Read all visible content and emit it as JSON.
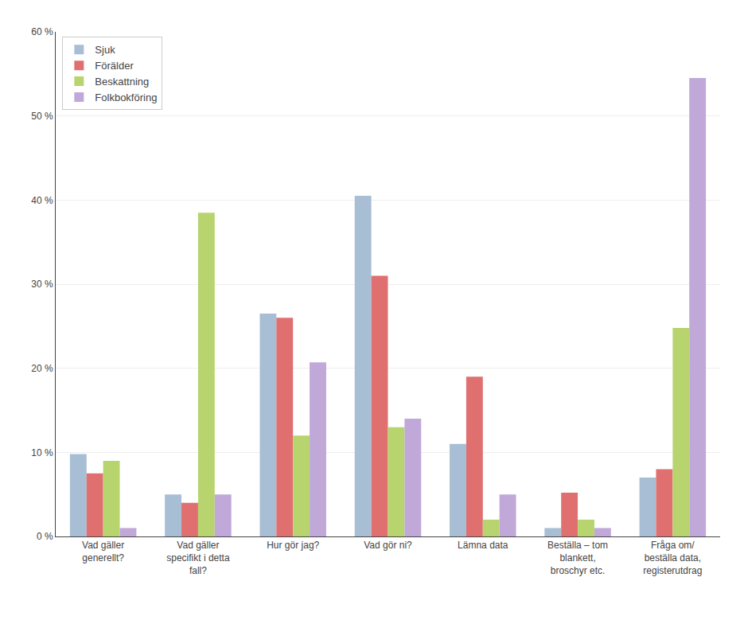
{
  "chart_data": {
    "type": "bar",
    "categories": [
      "Vad gäller\ngenerellt?",
      "Vad gäller\nspecifikt i detta\nfall?",
      "Hur gör jag?",
      "Vad gör ni?",
      "Lämna data",
      "Beställa – tom\nblankett,\nbroschyr etc.",
      "Fråga om/\nbeställa data,\nregisterutdrag"
    ],
    "series": [
      {
        "name": "Sjuk",
        "color": "#A8BED4",
        "values": [
          9.8,
          5.0,
          26.5,
          40.5,
          11.0,
          1.0,
          7.0
        ]
      },
      {
        "name": "Förälder",
        "color": "#E07070",
        "values": [
          7.5,
          4.0,
          26.0,
          31.0,
          19.0,
          5.2,
          8.0
        ]
      },
      {
        "name": "Beskattning",
        "color": "#B8D46E",
        "values": [
          9.0,
          38.5,
          12.0,
          13.0,
          2.0,
          2.0,
          24.8
        ]
      },
      {
        "name": "Folkbokföring",
        "color": "#C0A8D8",
        "values": [
          1.0,
          5.0,
          20.7,
          14.0,
          5.0,
          1.0,
          54.5
        ]
      }
    ],
    "ylim": [
      0,
      60
    ],
    "yticks": [
      {
        "value": 0,
        "label": "0 %"
      },
      {
        "value": 10,
        "label": "10 %"
      },
      {
        "value": 20,
        "label": "20 %"
      },
      {
        "value": 30,
        "label": "30 %"
      },
      {
        "value": 40,
        "label": "40 %"
      },
      {
        "value": 50,
        "label": "50 %"
      },
      {
        "value": 60,
        "label": "60 %"
      }
    ],
    "grid": true,
    "legend": "upper left"
  }
}
